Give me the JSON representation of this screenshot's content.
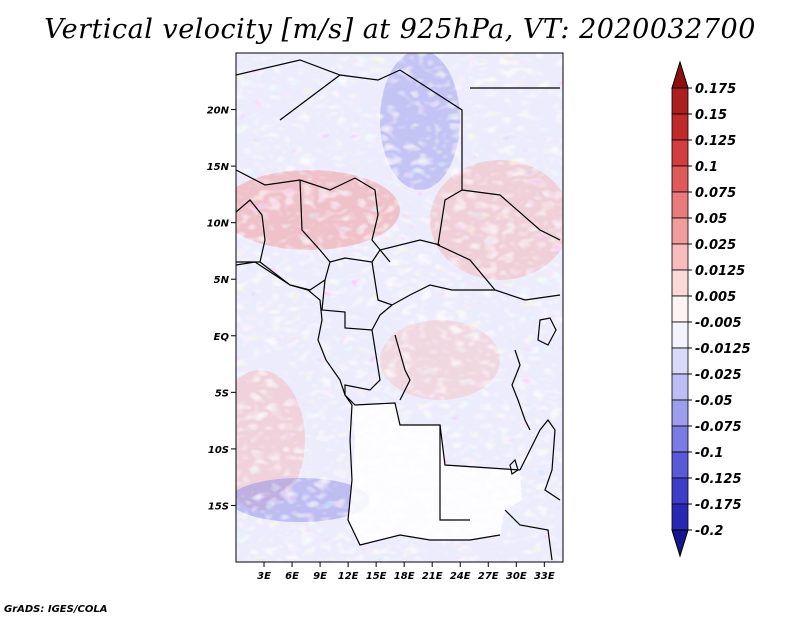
{
  "title": "Vertical velocity [m/s] at 925hPa, VT: 2020032700",
  "footer": "GrADS: IGES/COLA",
  "map": {
    "lon_range": [
      0,
      35
    ],
    "lat_range": [
      -20,
      25
    ],
    "lat_ticks": [
      {
        "value": 20,
        "label": "20N"
      },
      {
        "value": 15,
        "label": "15N"
      },
      {
        "value": 10,
        "label": "10N"
      },
      {
        "value": 5,
        "label": "5N"
      },
      {
        "value": 0,
        "label": "EQ"
      },
      {
        "value": -5,
        "label": "5S"
      },
      {
        "value": -10,
        "label": "10S"
      },
      {
        "value": -15,
        "label": "15S"
      }
    ],
    "lon_ticks": [
      {
        "value": 3,
        "label": "3E"
      },
      {
        "value": 6,
        "label": "6E"
      },
      {
        "value": 9,
        "label": "9E"
      },
      {
        "value": 12,
        "label": "12E"
      },
      {
        "value": 15,
        "label": "15E"
      },
      {
        "value": 18,
        "label": "18E"
      },
      {
        "value": 21,
        "label": "21E"
      },
      {
        "value": 24,
        "label": "24E"
      },
      {
        "value": 27,
        "label": "27E"
      },
      {
        "value": 30,
        "label": "30E"
      },
      {
        "value": 33,
        "label": "33E"
      }
    ]
  },
  "colorbar": {
    "levels": [
      {
        "label": "0.175",
        "color": "#a11a1a"
      },
      {
        "label": "0.15",
        "color": "#b72424"
      },
      {
        "label": "0.125",
        "color": "#cc3030"
      },
      {
        "label": "0.1",
        "color": "#dc4a4a"
      },
      {
        "label": "0.075",
        "color": "#e56a6a"
      },
      {
        "label": "0.05",
        "color": "#ee8c8c"
      },
      {
        "label": "0.025",
        "color": "#f5aeae"
      },
      {
        "label": "0.0125",
        "color": "#f9cccc"
      },
      {
        "label": "0.005",
        "color": "#fce6e6"
      },
      {
        "label": "-0.005",
        "color": "#ffffff"
      },
      {
        "label": "-0.0125",
        "color": "#e6e6fc"
      },
      {
        "label": "-0.025",
        "color": "#ccccf8"
      },
      {
        "label": "-0.05",
        "color": "#aeaef2"
      },
      {
        "label": "-0.075",
        "color": "#8c8cea"
      },
      {
        "label": "-0.1",
        "color": "#6a6ae0"
      },
      {
        "label": "-0.125",
        "color": "#4a4ad2"
      },
      {
        "label": "-0.175",
        "color": "#3030c0"
      },
      {
        "label": "-0.2",
        "color": "#2020a8"
      }
    ],
    "top_color": "#8c1010",
    "bottom_color": "#16168e"
  }
}
